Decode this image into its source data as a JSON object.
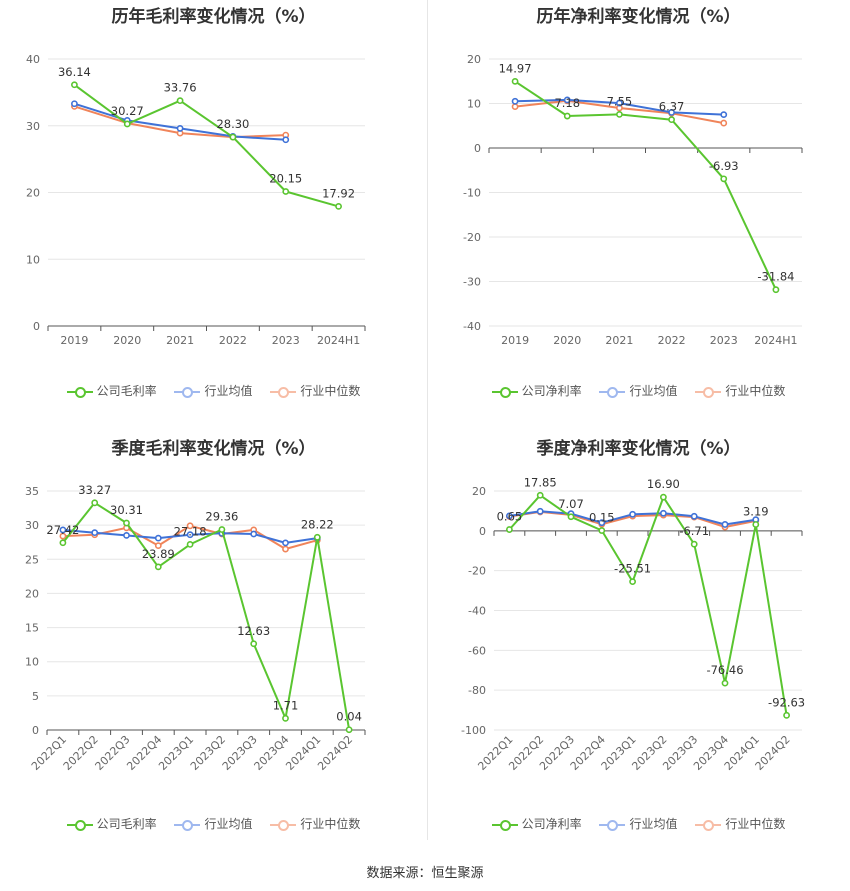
{
  "source": "数据来源：恒生聚源",
  "charts": [
    {
      "title": "历年毛利率变化情况（%）",
      "legend": [
        "公司毛利率",
        "行业均值",
        "行业中位数"
      ]
    },
    {
      "title": "历年净利率变化情况（%）",
      "legend": [
        "公司净利率",
        "行业均值",
        "行业中位数"
      ]
    },
    {
      "title": "季度毛利率变化情况（%）",
      "legend": [
        "公司毛利率",
        "行业均值",
        "行业中位数"
      ]
    },
    {
      "title": "季度净利率变化情况（%）",
      "legend": [
        "公司净利率",
        "行业均值",
        "行业中位数"
      ]
    }
  ],
  "colors": {
    "company": "#5ac530",
    "avg": "#3f72d7",
    "median": "#f0845a"
  },
  "chart_data": [
    {
      "type": "line",
      "title": "历年毛利率变化情况（%）",
      "categories": [
        "2019",
        "2020",
        "2021",
        "2022",
        "2023",
        "2024H1"
      ],
      "ylim": [
        0,
        40
      ],
      "yticks": [
        0,
        10,
        20,
        30,
        40
      ],
      "series": [
        {
          "name": "公司毛利率",
          "values": [
            36.14,
            30.27,
            33.76,
            28.3,
            20.15,
            17.92
          ],
          "labels": [
            "36.14",
            "30.27",
            "33.76",
            "28.30",
            "20.15",
            "17.92"
          ]
        },
        {
          "name": "行业均值",
          "values": [
            33.3,
            30.8,
            29.6,
            28.4,
            27.9,
            null
          ]
        },
        {
          "name": "行业中位数",
          "values": [
            32.9,
            30.4,
            28.9,
            28.3,
            28.6,
            null
          ]
        }
      ]
    },
    {
      "type": "line",
      "title": "历年净利率变化情况（%）",
      "categories": [
        "2019",
        "2020",
        "2021",
        "2022",
        "2023",
        "2024H1"
      ],
      "ylim": [
        -40,
        20
      ],
      "yticks": [
        -40,
        -30,
        -20,
        -10,
        0,
        10,
        20
      ],
      "series": [
        {
          "name": "公司净利率",
          "values": [
            14.97,
            7.18,
            7.55,
            6.37,
            -6.93,
            -31.84
          ],
          "labels": [
            "14.97",
            "7.18",
            "7.55",
            "6.37",
            "-6.93",
            "-31.84"
          ]
        },
        {
          "name": "行业均值",
          "values": [
            10.5,
            10.8,
            10.1,
            8.0,
            7.5,
            null
          ]
        },
        {
          "name": "行业中位数",
          "values": [
            9.3,
            10.6,
            9.0,
            7.8,
            5.6,
            null
          ]
        }
      ]
    },
    {
      "type": "line",
      "title": "季度毛利率变化情况（%）",
      "categories": [
        "2022Q1",
        "2022Q2",
        "2022Q3",
        "2022Q4",
        "2023Q1",
        "2023Q2",
        "2023Q3",
        "2023Q4",
        "2024Q1",
        "2024Q2"
      ],
      "ylim": [
        0,
        35
      ],
      "yticks": [
        0,
        5,
        10,
        15,
        20,
        25,
        30,
        35
      ],
      "series": [
        {
          "name": "公司毛利率",
          "values": [
            27.42,
            33.27,
            30.31,
            23.89,
            27.18,
            29.36,
            12.63,
            1.71,
            28.22,
            0.04
          ],
          "labels": [
            "27.42",
            "33.27",
            "30.31",
            "23.89",
            "27.18",
            "29.36",
            "12.63",
            "1.71",
            "28.22",
            "0.04"
          ]
        },
        {
          "name": "行业均值",
          "values": [
            29.3,
            28.9,
            28.5,
            28.1,
            28.6,
            28.8,
            28.7,
            27.4,
            28.1,
            null
          ]
        },
        {
          "name": "行业中位数",
          "values": [
            28.4,
            28.6,
            29.6,
            27.0,
            29.9,
            28.7,
            29.3,
            26.5,
            27.8,
            null
          ]
        }
      ]
    },
    {
      "type": "line",
      "title": "季度净利率变化情况（%）",
      "categories": [
        "2022Q1",
        "2022Q2",
        "2022Q3",
        "2022Q4",
        "2023Q1",
        "2023Q2",
        "2023Q3",
        "2023Q4",
        "2024Q1",
        "2024Q2"
      ],
      "ylim": [
        -100,
        20
      ],
      "yticks": [
        -100,
        -80,
        -60,
        -40,
        -20,
        0,
        20
      ],
      "series": [
        {
          "name": "公司净利率",
          "values": [
            0.65,
            17.85,
            7.07,
            0.15,
            -25.51,
            16.9,
            -6.71,
            -76.46,
            3.19,
            -92.63
          ],
          "labels": [
            "0.65",
            "17.85",
            "7.07",
            "0.15",
            "-25.51",
            "16.90",
            "-6.71",
            "-76.46",
            "3.19",
            "-92.63"
          ]
        },
        {
          "name": "行业均值",
          "values": [
            7.5,
            9.8,
            8.6,
            4.1,
            8.3,
            8.8,
            7.3,
            3.2,
            5.6,
            null
          ]
        },
        {
          "name": "行业中位数",
          "values": [
            7.2,
            9.5,
            8.0,
            3.3,
            7.4,
            7.9,
            6.9,
            1.9,
            5.0,
            null
          ]
        }
      ]
    }
  ]
}
